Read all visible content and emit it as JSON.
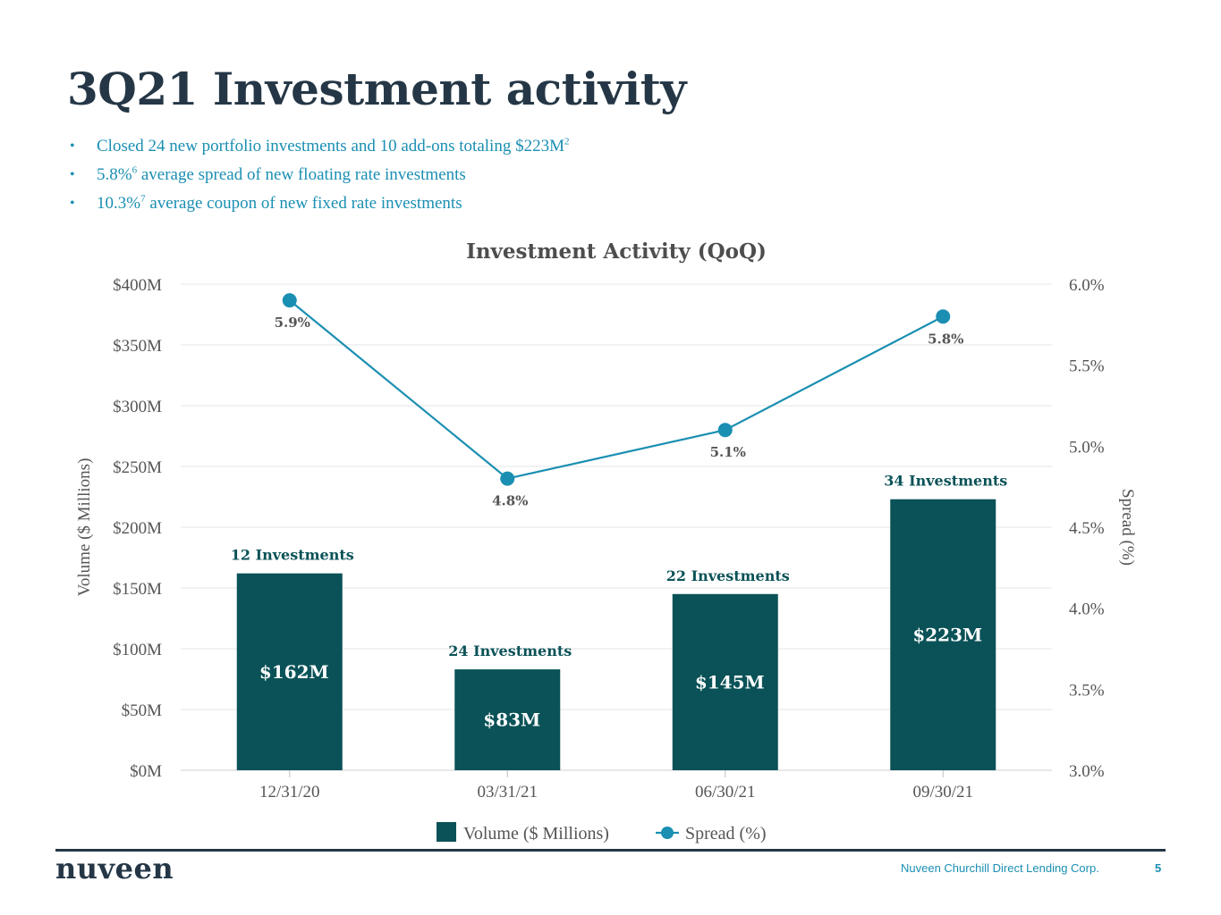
{
  "page": {
    "title": "3Q21 Investment activity",
    "bullets": [
      {
        "pre": "Closed 24 new portfolio investments and 10 add-ons totaling $223M",
        "sup": "2",
        "post": ""
      },
      {
        "pre": "5.8%",
        "sup": "6",
        "post": " average spread of new floating rate investments"
      },
      {
        "pre": "10.3%",
        "sup": "7",
        "post": " average coupon of new fixed rate investments"
      }
    ],
    "bullet_glyph": "•"
  },
  "chart_data": {
    "type": "bar",
    "title": "Investment Activity (QoQ)",
    "categories": [
      "12/31/20",
      "03/31/21",
      "06/30/21",
      "09/30/21"
    ],
    "series": [
      {
        "name": "Volume ($ Millions)",
        "type": "bar",
        "axis": "left",
        "values": [
          162,
          83,
          145,
          223
        ],
        "value_labels": [
          "$162M",
          "$83M",
          "$145M",
          "$223M"
        ],
        "bar_annotations": [
          "12 Investments",
          "24 Investments",
          "22 Investments",
          "34 Investments"
        ],
        "color": "#0a5257"
      },
      {
        "name": "Spread (%)",
        "type": "line",
        "axis": "right",
        "values": [
          5.9,
          4.8,
          5.1,
          5.8
        ],
        "value_labels": [
          "5.9%",
          "4.8%",
          "5.1%",
          "5.8%"
        ],
        "color": "#1a8fb2"
      }
    ],
    "y_left": {
      "label": "Volume ($ Millions)",
      "min": 0,
      "max": 400,
      "ticks": [
        0,
        50,
        100,
        150,
        200,
        250,
        300,
        350,
        400
      ],
      "tick_labels": [
        "$0M",
        "$50M",
        "$100M",
        "$150M",
        "$200M",
        "$250M",
        "$300M",
        "$350M",
        "$400M"
      ]
    },
    "y_right": {
      "label": "Spread (%)",
      "min": 3.0,
      "max": 6.0,
      "ticks": [
        3.0,
        3.5,
        4.0,
        4.5,
        5.0,
        5.5,
        6.0
      ],
      "tick_labels": [
        "3.0%",
        "3.5%",
        "4.0%",
        "4.5%",
        "5.0%",
        "5.5%",
        "6.0%"
      ]
    },
    "legend": {
      "position": "bottom",
      "items": [
        "Volume ($ Millions)",
        "Spread (%)"
      ]
    },
    "grid": true
  },
  "footer": {
    "logo": "nuveen",
    "company": "Nuveen Churchill Direct Lending Corp.",
    "page_number": "5"
  }
}
